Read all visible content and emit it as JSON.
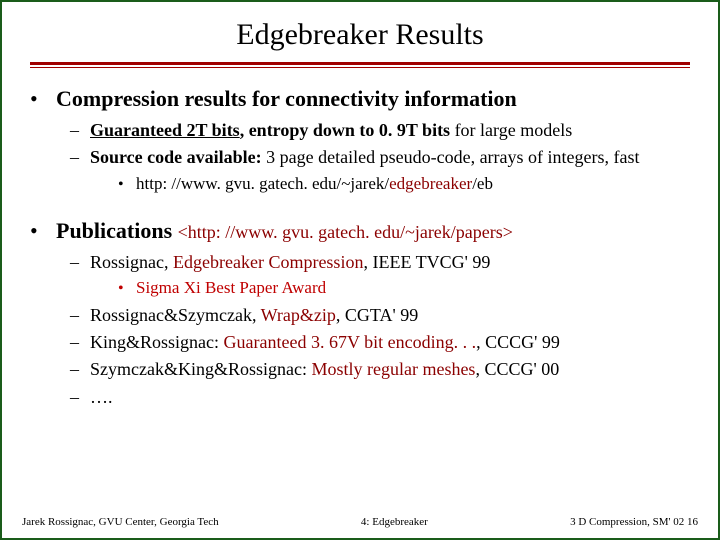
{
  "colors": {
    "border": "#1a5c1a",
    "rule": "#a00000",
    "red_dark": "#8b0000",
    "red": "#c00000",
    "text": "#000000",
    "background": "#ffffff"
  },
  "title": "Edgebreaker Results",
  "section1": {
    "heading": "Compression results for connectivity information",
    "item1_underlined": "Guaranteed 2T bits",
    "item1_rest_bold": ", entropy down to 0. 9T bits",
    "item1_tail": " for large models",
    "item2_bold": "Source code available:",
    "item2_rest": " 3 page detailed pseudo-code, arrays of integers, fast",
    "item2_sub_prefix": "http: //www. gvu. gatech. edu/~jarek/",
    "item2_sub_mid": "edgebreaker",
    "item2_sub_suffix": "/eb"
  },
  "section2": {
    "heading": "Publications ",
    "url": "<http: //www. gvu. gatech. edu/~jarek/papers>",
    "pub1_author": "Rossignac, ",
    "pub1_title": "Edgebreaker Compression",
    "pub1_venue": ", IEEE TVCG' 99",
    "pub1_award": "Sigma Xi Best Paper Award",
    "pub2_author": "Rossignac&Szymczak, ",
    "pub2_title": "Wrap&zip",
    "pub2_venue": ", CGTA' 99",
    "pub3_author": "King&Rossignac: ",
    "pub3_title": "Guaranteed 3. 67V bit encoding. . .",
    "pub3_venue": ", CCCG' 99",
    "pub4_author": "Szymczak&King&Rossignac: ",
    "pub4_title": "Mostly regular meshes",
    "pub4_venue": ", CCCG' 00",
    "pub5": "…."
  },
  "footer": {
    "left": "Jarek Rossignac, GVU Center, Georgia Tech",
    "center": "4: Edgebreaker",
    "right": "3 D Compression, SM' 02  16"
  }
}
